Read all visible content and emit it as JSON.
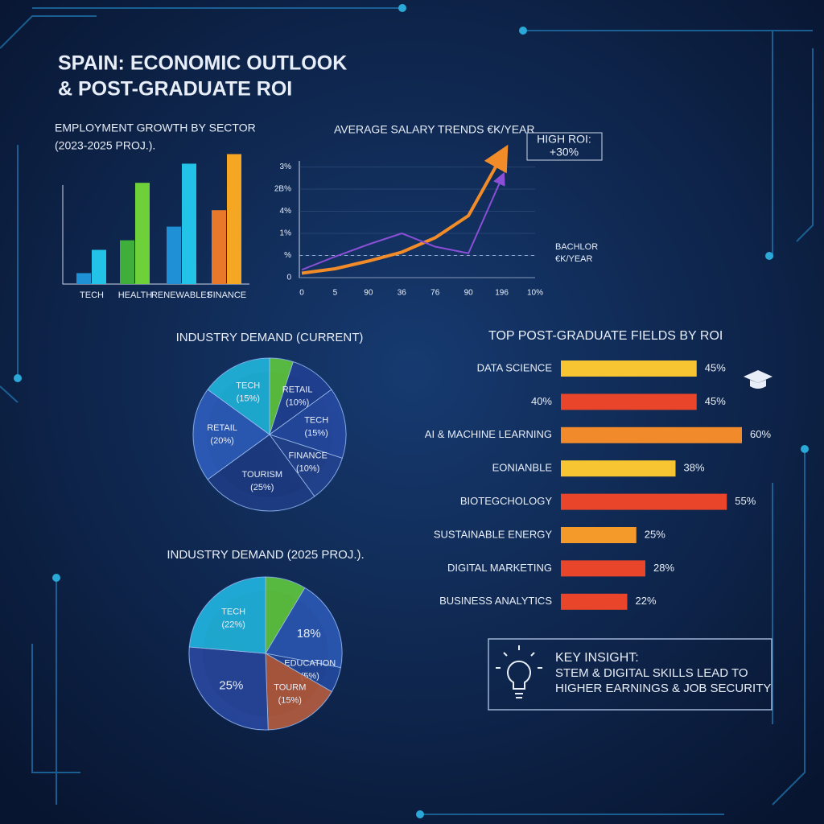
{
  "title": [
    "SPAIN: ECONOMIC OUTLOOK",
    "& POST-GRADUATE ROI"
  ],
  "chart_data": [
    {
      "type": "bar",
      "title": "EMPLOYMENT GROWTH BY SECTOR",
      "subtitle": "(2023-2025 PROJ.).",
      "categories": [
        "TECH",
        "HEALTH",
        "RENEWABLES",
        "FINANCE"
      ],
      "series": [
        {
          "values": [
            8,
            32,
            42,
            54
          ],
          "colors": [
            "#1f8fd6",
            "#3fae3a",
            "#1f8fd6",
            "#e8782a"
          ]
        },
        {
          "values": [
            25,
            74,
            88,
            95
          ],
          "colors": [
            "#22c3e6",
            "#6fd13a",
            "#22c3e6",
            "#f5a623"
          ]
        }
      ],
      "ylim": [
        0,
        100
      ]
    },
    {
      "type": "line",
      "title": "AVERAGE SALARY TRENDS €K/YEAR",
      "categories": [
        "0",
        "5",
        "90",
        "36",
        "76",
        "90",
        "196",
        "10%"
      ],
      "y_categories": [
        "0",
        "%",
        "1%",
        "4%",
        "2B%",
        "3%"
      ],
      "ylim": [
        0,
        6.2
      ],
      "grid": true,
      "series": [
        {
          "color": "#f28c28",
          "values": [
            0.2,
            0.4,
            0.75,
            1.15,
            1.8,
            2.8,
            5.5,
            null
          ]
        },
        {
          "color": "#8a4fd6",
          "values": [
            0.35,
            0.95,
            1.5,
            2.0,
            1.4,
            1.1,
            4.5,
            null
          ]
        }
      ],
      "annotations": [
        {
          "lines": [
            "HIGH ROI:",
            "+30%"
          ]
        },
        {
          "lines": [
            "BACHLOR",
            "€K/YEAR"
          ]
        }
      ]
    },
    {
      "type": "pie",
      "title": "INDUSTRY DEMAND (CURRENT)",
      "categories": [
        null,
        "RETAIL",
        "TECH",
        "FINANCE",
        "TOURISM",
        "RETAIL",
        "TECH"
      ],
      "values": [
        5,
        10,
        15,
        10,
        25,
        20,
        15
      ],
      "value_labels": [
        null,
        "(10%)",
        "(15%)",
        "(10%)",
        "(25%)",
        "(20%)",
        "(15%)"
      ],
      "colors": [
        "#5fc63a",
        "#1f3f8f",
        "#25489e",
        "#22418c",
        "#1d3a80",
        "#2c5bb8",
        "#1fb3d8"
      ]
    },
    {
      "type": "pie",
      "title": "INDUSTRY DEMAND (2025 PROJ.).",
      "categories": [
        null,
        null,
        "EDUCATION",
        "TOURM",
        null,
        "TECH"
      ],
      "values": [
        8,
        18,
        5,
        15,
        25,
        22
      ],
      "value_labels": [
        null,
        "18%",
        "(5%)",
        "(15%)",
        "25%",
        "(22%)"
      ],
      "colors": [
        "#5fc63a",
        "#2a56b0",
        "#23479a",
        "#b55a3a",
        "#28459a",
        "#20b4dc"
      ]
    },
    {
      "type": "hbar",
      "title": "TOP POST-GRADUATE FIELDS BY ROI",
      "categories": [
        "DATA SCIENCE",
        "40%",
        "AI & MACHINE LEARNING",
        "EONIANBLE",
        "BIOTEGCHOLOGY",
        "SUSTAINABLE ENERGY",
        "DIGITAL MARKETING",
        "BUSINESS ANALYTICS"
      ],
      "values": [
        45,
        45,
        60,
        38,
        55,
        25,
        28,
        22
      ],
      "value_labels": [
        "45%",
        "45%",
        "60%",
        "38%",
        "55%",
        "25%",
        "28%",
        "22%"
      ],
      "colors": [
        "#f7c531",
        "#e8452a",
        "#f08a2a",
        "#f7c531",
        "#e8452a",
        "#f39a2a",
        "#e8452a",
        "#e8452a"
      ]
    }
  ],
  "key_insight": {
    "heading": "KEY INSIGHT:",
    "lines": [
      "STEM & DIGITAL SKILLS LEAD TO",
      "HIGHER EARNINGS & JOB SECURITY"
    ]
  }
}
